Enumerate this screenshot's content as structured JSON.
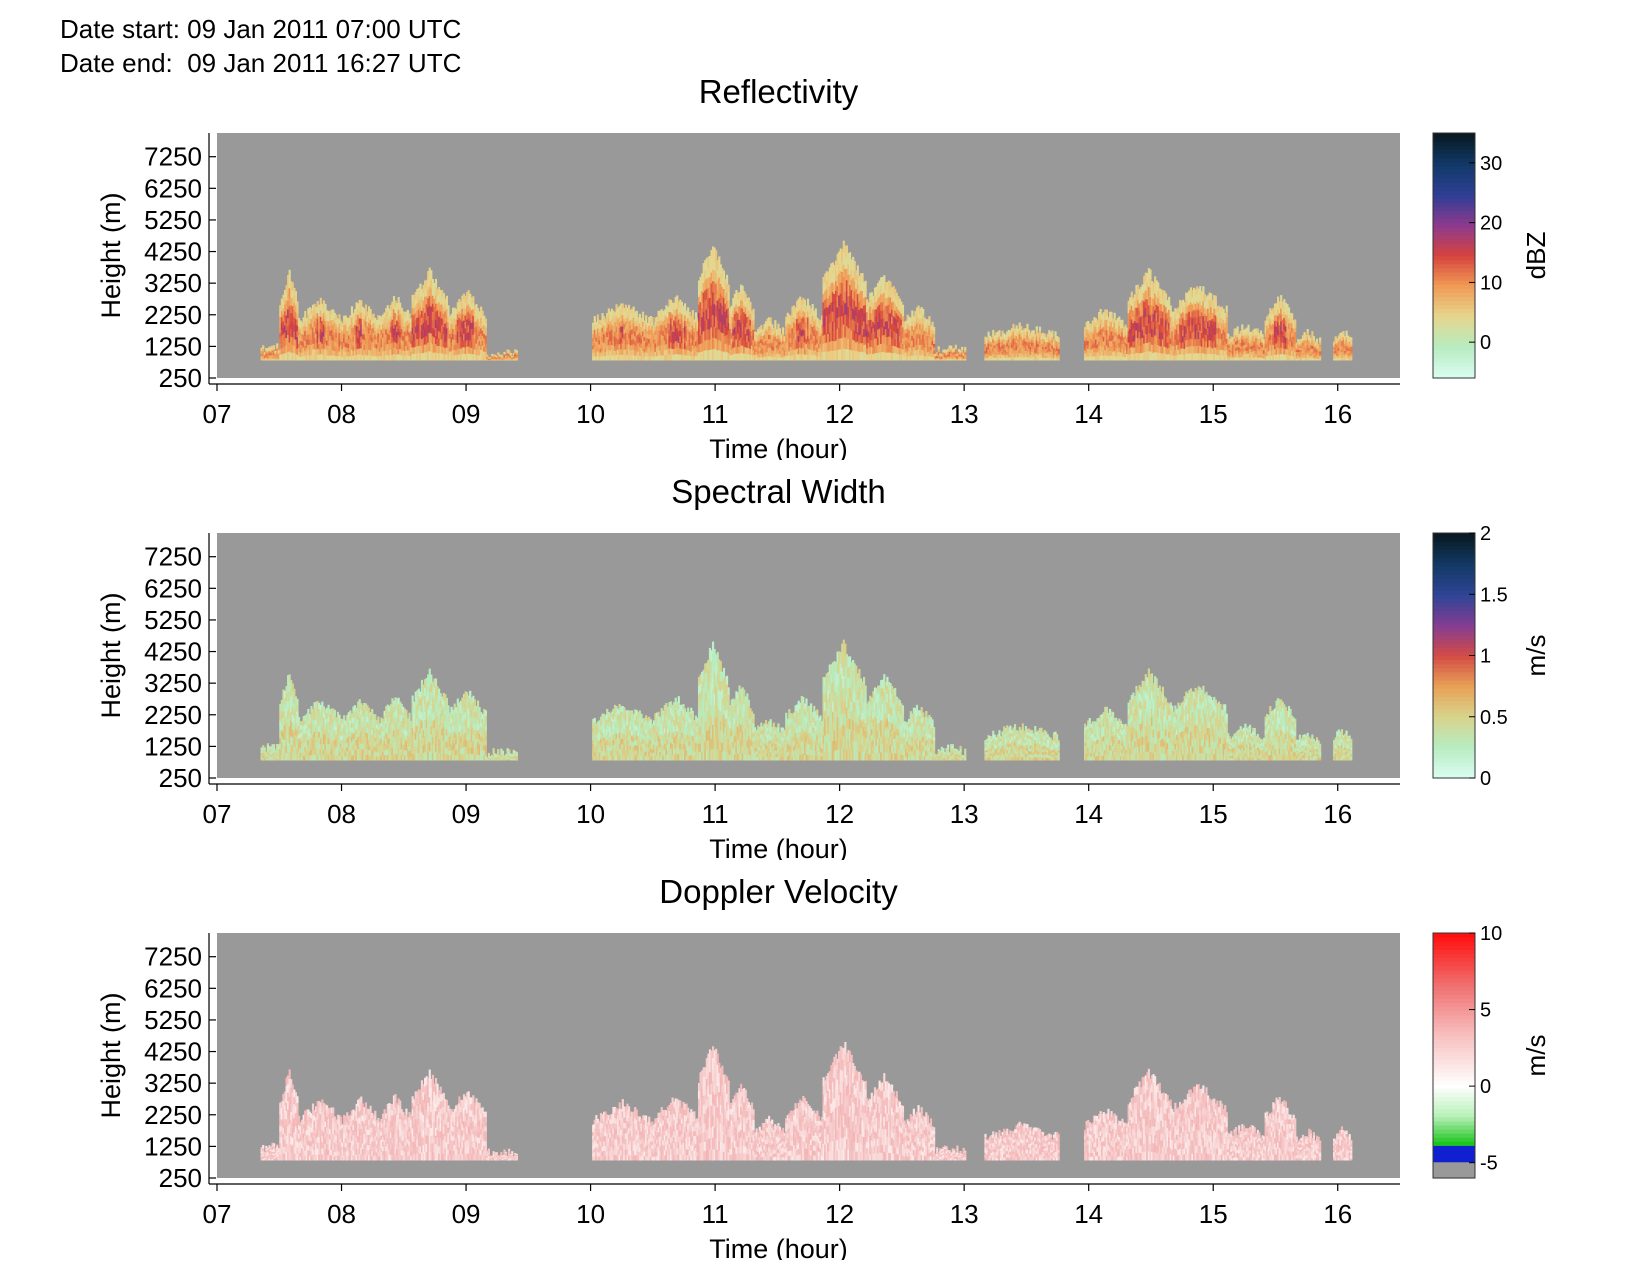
{
  "header": {
    "date_start_label": "Date start:",
    "date_start_value": "09 Jan 2011 07:00 UTC",
    "date_end_label": "Date end:",
    "date_end_value": "09 Jan 2011 16:27 UTC"
  },
  "colors": {
    "background_nodata": "#999999",
    "reflectivity_colormap": [
      "#d8fbf0",
      "#b7ecbf",
      "#e7d58c",
      "#f09a55",
      "#d6443e",
      "#8e3a8e",
      "#2f3f95",
      "#123a6a",
      "#081a23"
    ],
    "spectral_width_colormap": [
      "#d8fbf0",
      "#b7ecbf",
      "#d9d28a",
      "#e7a055",
      "#d44b45",
      "#843d92",
      "#304596",
      "#133a66",
      "#081a23"
    ],
    "doppler_colormap": [
      "#999999",
      "#1020d0",
      "#10c010",
      "#b8f0b8",
      "#ffffff",
      "#f8c0c0",
      "#f07070",
      "#ff1010"
    ]
  },
  "chart_data": [
    {
      "type": "heatmap",
      "title": "Reflectivity",
      "xlabel": "Time (hour)",
      "ylabel": "Height (m)",
      "xlim": [
        7.0,
        16.5
      ],
      "ylim": [
        250,
        8000
      ],
      "xticks": [
        "07",
        "08",
        "09",
        "10",
        "11",
        "12",
        "13",
        "14",
        "15",
        "16"
      ],
      "yticks": [
        "7250",
        "6250",
        "5250",
        "4250",
        "3250",
        "2250",
        "1250",
        "250"
      ],
      "colorbar": {
        "label": "dBZ",
        "range": [
          -6,
          35
        ],
        "ticks": [
          "30",
          "20",
          "10",
          "0"
        ],
        "tick_values": [
          30,
          20,
          10,
          0
        ]
      },
      "cloud_segments": [
        {
          "start": 7.35,
          "end": 7.5,
          "top": 1300
        },
        {
          "start": 7.5,
          "end": 7.65,
          "top": 3600
        },
        {
          "start": 7.65,
          "end": 8.0,
          "top": 2700
        },
        {
          "start": 8.0,
          "end": 8.3,
          "top": 2700
        },
        {
          "start": 8.3,
          "end": 8.55,
          "top": 2800
        },
        {
          "start": 8.55,
          "end": 8.85,
          "top": 3600
        },
        {
          "start": 8.85,
          "end": 9.15,
          "top": 3000
        },
        {
          "start": 9.15,
          "end": 9.4,
          "top": 1100
        },
        {
          "start": 10.0,
          "end": 10.5,
          "top": 2600
        },
        {
          "start": 10.5,
          "end": 10.85,
          "top": 2800
        },
        {
          "start": 10.85,
          "end": 11.1,
          "top": 4500
        },
        {
          "start": 11.1,
          "end": 11.3,
          "top": 3200
        },
        {
          "start": 11.3,
          "end": 11.55,
          "top": 2100
        },
        {
          "start": 11.55,
          "end": 11.85,
          "top": 2800
        },
        {
          "start": 11.85,
          "end": 12.2,
          "top": 4500
        },
        {
          "start": 12.2,
          "end": 12.5,
          "top": 3500
        },
        {
          "start": 12.5,
          "end": 12.75,
          "top": 2500
        },
        {
          "start": 12.75,
          "end": 13.0,
          "top": 1200
        },
        {
          "start": 13.15,
          "end": 13.75,
          "top": 1900
        },
        {
          "start": 13.95,
          "end": 14.3,
          "top": 2400
        },
        {
          "start": 14.3,
          "end": 14.65,
          "top": 3600
        },
        {
          "start": 14.65,
          "end": 15.1,
          "top": 3200
        },
        {
          "start": 15.1,
          "end": 15.4,
          "top": 1900
        },
        {
          "start": 15.4,
          "end": 15.65,
          "top": 2800
        },
        {
          "start": 15.65,
          "end": 15.85,
          "top": 1700
        },
        {
          "start": 15.95,
          "end": 16.1,
          "top": 1800
        }
      ]
    },
    {
      "type": "heatmap",
      "title": "Spectral Width",
      "xlabel": "Time (hour)",
      "ylabel": "Height (m)",
      "xlim": [
        7.0,
        16.5
      ],
      "ylim": [
        250,
        8000
      ],
      "xticks": [
        "07",
        "08",
        "09",
        "10",
        "11",
        "12",
        "13",
        "14",
        "15",
        "16"
      ],
      "yticks": [
        "7250",
        "6250",
        "5250",
        "4250",
        "3250",
        "2250",
        "1250",
        "250"
      ],
      "colorbar": {
        "label": "m/s",
        "range": [
          0,
          2
        ],
        "ticks": [
          "2",
          "1.5",
          "1",
          "0.5",
          "0"
        ],
        "tick_values": [
          2,
          1.5,
          1,
          0.5,
          0
        ]
      }
    },
    {
      "type": "heatmap",
      "title": "Doppler Velocity",
      "xlabel": "Time (hour)",
      "ylabel": "Height (m)",
      "xlim": [
        7.0,
        16.5
      ],
      "ylim": [
        250,
        8000
      ],
      "xticks": [
        "07",
        "08",
        "09",
        "10",
        "11",
        "12",
        "13",
        "14",
        "15",
        "16"
      ],
      "yticks": [
        "7250",
        "6250",
        "5250",
        "4250",
        "3250",
        "2250",
        "1250",
        "250"
      ],
      "colorbar": {
        "label": "m/s",
        "range": [
          -6,
          10
        ],
        "ticks": [
          "10",
          "5",
          "0",
          "-5"
        ],
        "tick_values": [
          10,
          5,
          0,
          -5
        ]
      }
    }
  ]
}
